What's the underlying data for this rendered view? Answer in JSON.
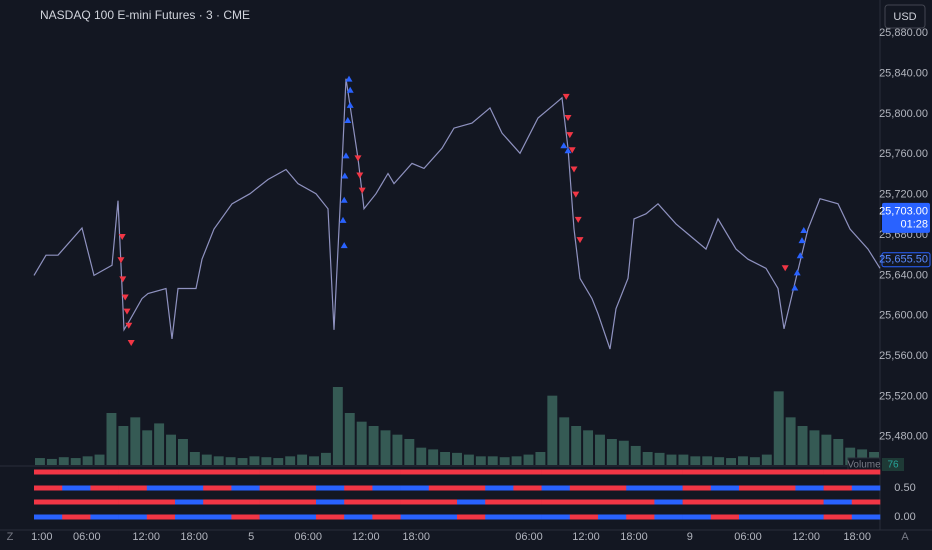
{
  "header": {
    "title": "NASDAQ 100 E-mini Futures · 3 · CME",
    "currency": "USD"
  },
  "chart_data": {
    "type": "line",
    "color": "#8f92c0",
    "x": [
      0,
      2,
      4,
      8,
      10,
      13,
      14,
      15,
      16,
      18,
      19,
      22,
      23,
      24,
      27,
      28,
      30,
      33,
      36,
      39,
      42,
      44,
      47,
      49,
      50,
      51,
      52,
      54,
      55,
      57,
      59,
      60,
      63,
      65,
      68,
      70,
      73,
      76,
      78,
      81,
      84,
      87,
      88,
      89,
      90,
      91,
      93,
      94,
      96,
      97,
      99,
      100,
      102,
      104,
      107,
      109,
      112,
      114,
      117,
      119,
      122,
      124,
      125,
      127,
      129,
      131,
      134,
      136,
      139,
      141
    ],
    "values": [
      25640,
      25660,
      25660,
      25687,
      25640,
      25650,
      25714,
      25586,
      25596,
      25617,
      25622,
      25627,
      25577,
      25627,
      25627,
      25656,
      25686,
      25711,
      25721,
      25735,
      25745,
      25731,
      25721,
      25706,
      25586,
      25706,
      25835,
      25756,
      25706,
      25721,
      25741,
      25731,
      25751,
      25746,
      25766,
      25786,
      25791,
      25806,
      25781,
      25761,
      25796,
      25811,
      25816,
      25766,
      25686,
      25637,
      25617,
      25602,
      25567,
      25607,
      25637,
      25696,
      25701,
      25711,
      25691,
      25681,
      25666,
      25696,
      25666,
      25656,
      25647,
      25627,
      25587,
      25637,
      25686,
      25716,
      25711,
      25686,
      25666,
      25647
    ],
    "xlim": [
      0,
      141
    ],
    "xticks": [
      {
        "value": 1.3,
        "label": "1:00"
      },
      {
        "value": 8.8,
        "label": "06:00"
      },
      {
        "value": 18.7,
        "label": "12:00"
      },
      {
        "value": 26.7,
        "label": "18:00"
      },
      {
        "value": 36.2,
        "label": "5"
      },
      {
        "value": 45.7,
        "label": "06:00"
      },
      {
        "value": 55.3,
        "label": "12:00"
      },
      {
        "value": 63.7,
        "label": "18:00"
      },
      {
        "value": 82.5,
        "label": "06:00"
      },
      {
        "value": 92,
        "label": "12:00"
      },
      {
        "value": 100,
        "label": "18:00"
      },
      {
        "value": 109.3,
        "label": "9"
      },
      {
        "value": 119,
        "label": "06:00"
      },
      {
        "value": 128.7,
        "label": "12:00"
      },
      {
        "value": 137.2,
        "label": "18:00"
      }
    ],
    "ylim": [
      25452,
      25913
    ],
    "yticks": [
      {
        "value": 25880,
        "label": "25,880.00"
      },
      {
        "value": 25840,
        "label": "25,840.00"
      },
      {
        "value": 25800,
        "label": "25,800.00"
      },
      {
        "value": 25760,
        "label": "25,760.00"
      },
      {
        "value": 25720,
        "label": "25,720.00"
      },
      {
        "value": 25680,
        "label": "25,680.00"
      },
      {
        "value": 25640,
        "label": "25,640.00"
      },
      {
        "value": 25600,
        "label": "25,600.00"
      },
      {
        "value": 25560,
        "label": "25,560.00"
      },
      {
        "value": 25520,
        "label": "25,520.00"
      },
      {
        "value": 25480,
        "label": "25,480.00"
      }
    ],
    "grid": false,
    "signals": [
      {
        "direction": "down",
        "color": "#f23645",
        "x": [
          14.5,
          14.7,
          14.8,
          15.2,
          15.5,
          15.8,
          16.2,
          54,
          54.3,
          54.7,
          88.7,
          89,
          89.3,
          89.7,
          90,
          90.3,
          90.7,
          91,
          125.2
        ],
        "y": [
          25655,
          25678,
          25636,
          25618,
          25604,
          25590,
          25573,
          25756,
          25739,
          25724,
          25817,
          25796,
          25779,
          25764,
          25745,
          25720,
          25695,
          25675,
          25647
        ]
      },
      {
        "direction": "up",
        "color": "#2962ff",
        "x": [
          52.5,
          52.7,
          52.7,
          52.3,
          52,
          51.8,
          51.7,
          51.5,
          51.7,
          88.3,
          89,
          126.8,
          127.2,
          127.7,
          128,
          128.3
        ],
        "y": [
          25835,
          25824,
          25809,
          25794,
          25759,
          25739,
          25715,
          25695,
          25670,
          25769,
          25764,
          25628,
          25643,
          25660,
          25675,
          25685
        ]
      }
    ],
    "last_price": {
      "value": 25703,
      "label": "25,703.00",
      "countdown": "01:28"
    },
    "marker_price": {
      "value": 25655.5,
      "label": "25,655.50"
    },
    "volume": {
      "label": "Volume",
      "last": 76,
      "color": "#3f6b62",
      "ylim": [
        0,
        150
      ],
      "values": [
        8,
        7,
        9,
        8,
        10,
        12,
        60,
        45,
        55,
        40,
        48,
        35,
        30,
        15,
        12,
        10,
        9,
        8,
        10,
        9,
        8,
        10,
        12,
        10,
        14,
        90,
        60,
        50,
        45,
        40,
        35,
        30,
        20,
        18,
        15,
        14,
        12,
        10,
        10,
        9,
        10,
        12,
        15,
        80,
        55,
        45,
        40,
        35,
        30,
        28,
        22,
        15,
        14,
        12,
        12,
        10,
        10,
        9,
        8,
        10,
        9,
        12,
        85,
        55,
        45,
        40,
        35,
        30,
        20,
        18,
        15
      ]
    },
    "indicator": {
      "ylim": [
        -0.22,
        0.88
      ],
      "yticks": [
        {
          "value": 0.5,
          "label": "0.50"
        },
        {
          "value": 0,
          "label": "0.00"
        }
      ],
      "colors": [
        "#f23645",
        "#2962ff"
      ],
      "rows": [
        [
          0,
          0,
          0,
          0,
          0,
          0,
          0,
          0,
          0,
          0,
          0,
          0,
          0,
          0,
          0,
          0,
          0,
          0,
          0,
          0,
          0,
          0,
          0,
          0,
          0,
          0,
          0,
          0,
          0,
          0
        ],
        [
          0,
          1,
          0,
          0,
          1,
          1,
          0,
          1,
          0,
          0,
          1,
          0,
          1,
          1,
          0,
          0,
          1,
          0,
          1,
          0,
          0,
          1,
          1,
          0,
          1,
          0,
          0,
          1,
          0,
          1
        ],
        [
          0,
          0,
          0,
          0,
          0,
          1,
          0,
          0,
          0,
          0,
          1,
          0,
          0,
          0,
          0,
          1,
          0,
          0,
          0,
          0,
          0,
          0,
          1,
          0,
          0,
          0,
          0,
          0,
          1,
          0
        ],
        [
          1,
          0,
          1,
          1,
          0,
          1,
          1,
          0,
          1,
          1,
          0,
          1,
          0,
          1,
          1,
          0,
          1,
          1,
          1,
          0,
          1,
          0,
          1,
          1,
          0,
          1,
          1,
          1,
          0,
          1
        ]
      ]
    }
  },
  "corner_icons": {
    "left": "Z",
    "right": "A"
  }
}
